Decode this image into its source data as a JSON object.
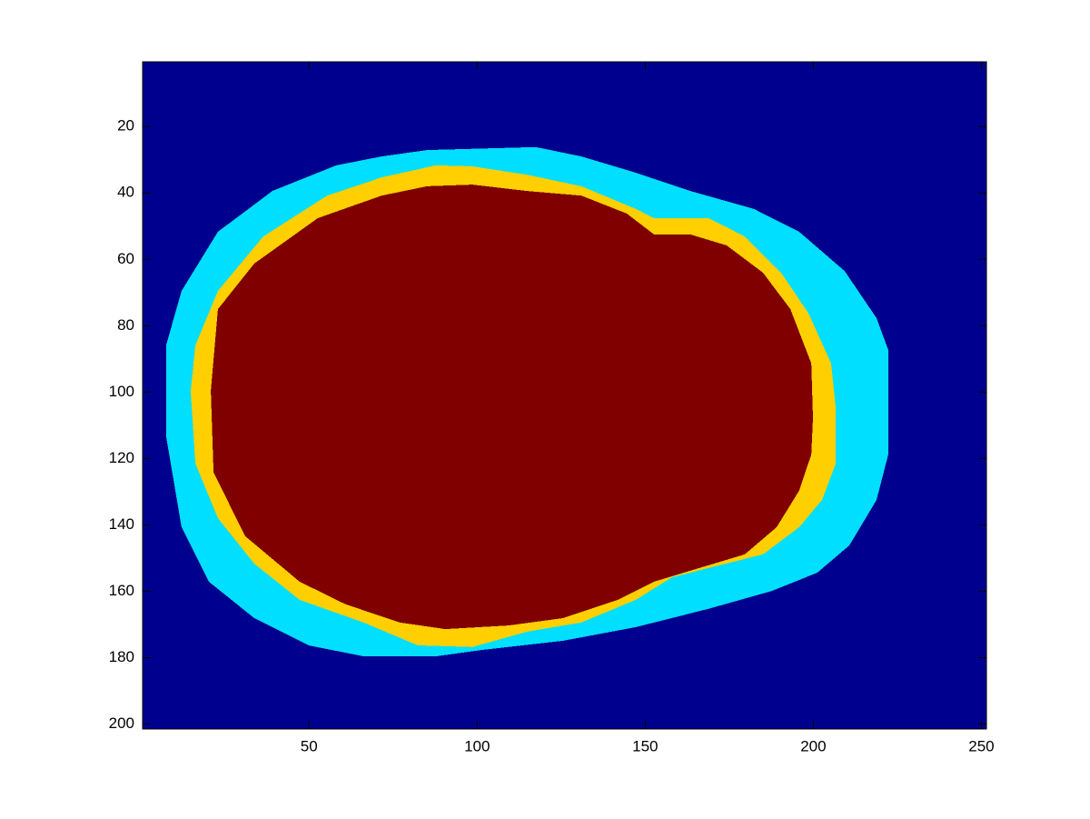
{
  "chart_data": {
    "type": "image",
    "background": "#00008f",
    "xlim": [
      0.5,
      251.5
    ],
    "ylim": [
      0.5,
      201.5
    ],
    "y_reversed": true,
    "xticks": [
      50,
      100,
      150,
      200,
      250
    ],
    "yticks": [
      20,
      40,
      60,
      80,
      100,
      120,
      140,
      160,
      180,
      200
    ],
    "regions": [
      {
        "color": "#00dfff",
        "x": [
          85.1,
          117.5,
          131.0,
          147.2,
          163.4,
          182.3,
          195.8,
          209.3,
          218.8,
          222.3,
          222.3,
          218.8,
          210.7,
          201.2,
          187.7,
          168.8,
          147.2,
          125.6,
          101.3,
          87.8,
          66.2,
          49.9,
          33.7,
          20.2,
          12.1,
          7.5,
          7.5,
          12.1,
          22.9,
          39.1,
          58.1,
          71.6
        ],
        "y": [
          27.1,
          26.2,
          29.0,
          33.9,
          39.4,
          44.8,
          51.7,
          63.5,
          77.7,
          87.3,
          118.8,
          132.5,
          146.2,
          154.4,
          159.9,
          165.3,
          170.8,
          174.9,
          177.7,
          179.6,
          179.6,
          176.3,
          168.1,
          157.1,
          140.7,
          113.3,
          85.9,
          69.5,
          51.7,
          39.4,
          31.7,
          29.0
        ]
      },
      {
        "color": "#ffcf00",
        "x": [
          87.8,
          98.6,
          114.8,
          131.0,
          147.2,
          152.6,
          168.8,
          179.6,
          190.4,
          198.6,
          205.3,
          206.7,
          206.7,
          202.6,
          195.8,
          185.0,
          168.8,
          158.0,
          147.2,
          131.0,
          114.8,
          98.6,
          82.4,
          66.2,
          47.2,
          33.7,
          22.9,
          16.2,
          14.8,
          16.2,
          22.9,
          36.4,
          55.4,
          71.6
        ],
        "y": [
          31.7,
          32.0,
          34.5,
          38.0,
          44.8,
          47.6,
          47.6,
          53.1,
          64.0,
          76.3,
          91.4,
          105.1,
          121.5,
          132.5,
          140.7,
          148.9,
          153.0,
          155.8,
          162.6,
          169.4,
          172.2,
          176.8,
          176.3,
          169.4,
          162.6,
          151.7,
          138.0,
          121.5,
          99.6,
          85.9,
          69.5,
          53.1,
          40.8,
          35.3
        ]
      },
      {
        "color": "#800000",
        "x": [
          85.1,
          98.6,
          114.8,
          131.0,
          144.5,
          152.6,
          163.4,
          174.2,
          185.0,
          193.2,
          199.4,
          199.9,
          199.4,
          195.8,
          189.1,
          179.6,
          166.1,
          152.6,
          141.8,
          125.6,
          109.4,
          90.5,
          77.0,
          60.8,
          47.2,
          31.0,
          21.6,
          20.8,
          22.9,
          33.7,
          52.6,
          71.6
        ],
        "y": [
          38.0,
          37.5,
          39.4,
          40.8,
          46.2,
          52.5,
          52.5,
          55.8,
          64.0,
          75.0,
          91.4,
          107.8,
          118.8,
          129.7,
          140.7,
          148.9,
          153.0,
          157.1,
          162.6,
          168.1,
          170.3,
          171.4,
          169.4,
          163.9,
          157.1,
          143.4,
          124.2,
          99.6,
          75.0,
          61.3,
          47.6,
          40.8
        ]
      }
    ]
  }
}
